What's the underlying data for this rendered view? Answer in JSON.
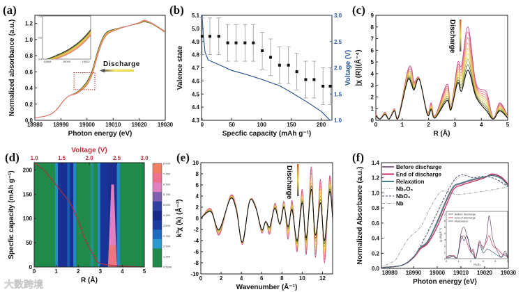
{
  "figure": {
    "watermark": "大数跨境"
  },
  "chart_data": [
    {
      "id": "a",
      "label": "(a)",
      "type": "line",
      "xlabel": "Photon energy (eV)",
      "ylabel": "Normalized absorbance (a.u.)",
      "xlim": [
        18980,
        19030
      ],
      "ylim": [
        0,
        1.3
      ],
      "xticks": [
        "18980",
        "18990",
        "19000",
        "19010",
        "19020",
        "19030"
      ],
      "yticks": [
        "0.0",
        "0.2",
        "0.4",
        "0.6",
        "0.8",
        "1.0",
        "1.2"
      ],
      "annotation": "Discharge",
      "n_curves": 8,
      "x": [
        18980,
        18985,
        18988,
        18991,
        18993,
        18995,
        18997,
        19000,
        19002,
        19004,
        19006,
        19008,
        19012,
        19016,
        19020,
        19022,
        19025,
        19030
      ],
      "start_curve": [
        0.03,
        0.06,
        0.12,
        0.24,
        0.3,
        0.33,
        0.37,
        0.48,
        0.62,
        0.85,
        1.02,
        1.1,
        1.14,
        1.17,
        1.2,
        1.22,
        1.19,
        1.09
      ],
      "end_curve": [
        0.03,
        0.06,
        0.12,
        0.24,
        0.3,
        0.32,
        0.35,
        0.44,
        0.57,
        0.8,
        0.98,
        1.07,
        1.13,
        1.17,
        1.21,
        1.24,
        1.2,
        1.1
      ],
      "colors": [
        "#111111",
        "#8a8a2a",
        "#e8d84a",
        "#f0a040",
        "#e07070"
      ],
      "highlight_box": {
        "x": [
          18995,
          19003
        ],
        "y": [
          0.38,
          0.59
        ],
        "color": "#a02020"
      },
      "inset": {
        "xlim": [
          18997.5,
          19002.5
        ],
        "ylim": [
          0.4,
          0.8
        ],
        "xticks": [
          "18998",
          "19000",
          "19002"
        ],
        "yticks": [
          "0.4",
          "0.6",
          "0.8"
        ]
      }
    },
    {
      "id": "b",
      "label": "(b)",
      "type": "scatter",
      "xlabel": "Specfic capacity (mAh g⁻¹)",
      "ylabel": "Valence state",
      "ylabel_right": "Voltage (V)",
      "xlim": [
        -1,
        218
      ],
      "ylim": [
        4.3,
        5.1
      ],
      "ylim_right": [
        1.0,
        3.0
      ],
      "xticks": [
        "0",
        "50",
        "100",
        "150",
        "200"
      ],
      "yticks": [
        "4.3",
        "4.4",
        "4.5",
        "4.6",
        "4.7",
        "4.8",
        "4.9",
        "5.0",
        "5.1"
      ],
      "yticks_right": [
        "1.0",
        "1.5",
        "2.0",
        "2.5",
        "3.0"
      ],
      "right_axis_color": "#2a5a9a",
      "valence": {
        "capacity": [
          0,
          13,
          28,
          43,
          57,
          72,
          86,
          101,
          115,
          130,
          145,
          159,
          174,
          188,
          203,
          215
        ],
        "value": [
          4.94,
          4.94,
          4.94,
          4.89,
          4.89,
          4.89,
          4.89,
          4.83,
          4.78,
          4.72,
          4.72,
          4.67,
          4.61,
          4.61,
          4.56,
          4.56
        ],
        "error": [
          0.14,
          0.14,
          0.14,
          0.14,
          0.14,
          0.14,
          0.14,
          0.14,
          0.14,
          0.14,
          0.14,
          0.14,
          0.14,
          0.14,
          0.14,
          0.14
        ]
      },
      "voltage_curve": {
        "capacity": [
          0,
          2,
          5,
          10,
          20,
          50,
          75,
          100,
          130,
          150,
          180,
          200,
          215
        ],
        "voltage": [
          3.0,
          2.6,
          2.3,
          2.15,
          2.1,
          1.95,
          1.87,
          1.78,
          1.66,
          1.53,
          1.32,
          1.17,
          1.0
        ],
        "color": "#1f4f8f"
      }
    },
    {
      "id": "c",
      "label": "(c)",
      "type": "line",
      "xlabel": "R (Å)",
      "ylabel": "|χ (R)|(Å⁻⁴)",
      "xlim": [
        0,
        5
      ],
      "ylim": [
        0,
        9
      ],
      "xticks": [
        "0",
        "1",
        "2",
        "3",
        "4",
        "5"
      ],
      "yticks": [
        "0",
        "1",
        "2",
        "3",
        "4",
        "5",
        "6",
        "7",
        "8",
        "9"
      ],
      "annotation": "Discharge",
      "n_curves": 9,
      "x": [
        0,
        0.15,
        0.35,
        0.5,
        0.7,
        0.85,
        1.2,
        1.35,
        1.45,
        1.65,
        1.95,
        2.1,
        2.25,
        2.7,
        2.85,
        3.1,
        3.25,
        3.5,
        3.8,
        4.2,
        4.45,
        4.7,
        5
      ],
      "start_curve": [
        0.6,
        0.1,
        0.7,
        0.1,
        1.0,
        0.3,
        4.2,
        4.5,
        3.3,
        3.6,
        0.7,
        1.5,
        0.4,
        3.1,
        1.2,
        4.9,
        4.7,
        8.0,
        3.2,
        2.4,
        0.2,
        1.5,
        0.4
      ],
      "end_curve": [
        0.4,
        0.1,
        0.5,
        0.1,
        0.8,
        0.2,
        3.4,
        3.1,
        2.6,
        3.5,
        0.5,
        0.9,
        0.2,
        1.7,
        0.9,
        3.2,
        2.5,
        4.3,
        2.0,
        0.8,
        0.1,
        0.8,
        0.2
      ],
      "colors": [
        "#c04080",
        "#e07090",
        "#f0a050",
        "#e8d84a",
        "#8a8a2a",
        "#111111"
      ]
    },
    {
      "id": "d",
      "label": "(d)",
      "type": "heatmap",
      "xlabel": "R (Å)",
      "ylabel": "Specfic capacity (mAh g⁻¹)",
      "x2label": "Voltage (V)",
      "xlim": [
        0,
        5
      ],
      "ylim": [
        0,
        215
      ],
      "x2lim": [
        1.0,
        3.0
      ],
      "xticks": [
        "0",
        "1",
        "2",
        "3",
        "4",
        "5"
      ],
      "yticks": [
        "0",
        "50",
        "100",
        "150",
        "200"
      ],
      "x2ticks": [
        "1.0",
        "1.5",
        "2.0",
        "2.5",
        "3.0"
      ],
      "x2_color": "#c03040",
      "colorbar": {
        "ticks": [
          "0.5000",
          "1.250",
          "2.000",
          "2.750",
          "3.500",
          "4.250",
          "5.000",
          "5.750",
          "6.500",
          "7.250",
          "8.000"
        ],
        "range": [
          0.5,
          8.0
        ],
        "colors": [
          "#1f8a4a",
          "#1f8a4a",
          "#2a9ad0",
          "#1a6ac0",
          "#1a3aa0",
          "#16288a",
          "#3040a0",
          "#8060b0",
          "#e080c0",
          "#f07090",
          "#f08060"
        ]
      },
      "bands": [
        {
          "r": [
            0.95,
            1.08
          ],
          "value": 2.2
        },
        {
          "r": [
            1.08,
            1.5
          ],
          "value": 3.9
        },
        {
          "r": [
            1.5,
            1.62
          ],
          "value": 3.0
        },
        {
          "r": [
            1.62,
            1.78
          ],
          "value": 3.9
        },
        {
          "r": [
            1.78,
            1.9
          ],
          "value": 2.3
        },
        {
          "r": [
            2.55,
            2.7
          ],
          "value": 1.6
        },
        {
          "r": [
            2.88,
            3.0
          ],
          "value": 2.2
        },
        {
          "r": [
            3.0,
            3.35
          ],
          "value": 3.8
        },
        {
          "r": [
            3.35,
            3.75
          ],
          "value": 4.4
        },
        {
          "r": [
            3.75,
            3.9
          ],
          "value": 2.3
        }
      ],
      "peak": {
        "r_center": 3.55,
        "value_max": 8.0,
        "value_mid": 6.5
      },
      "voltage_overlay_color": "#b03040"
    },
    {
      "id": "e",
      "label": "(e)",
      "type": "line",
      "xlabel": "Wavenumber (Å⁻¹)",
      "ylabel": "k³χ (k) (Å⁻³)",
      "xlim": [
        0,
        13
      ],
      "ylim": [
        -10,
        10
      ],
      "xticks": [
        "0",
        "2",
        "4",
        "6",
        "8",
        "10",
        "12"
      ],
      "yticks": [
        "-10",
        "-8",
        "-6",
        "-4",
        "-2",
        "0",
        "2",
        "4",
        "6",
        "8",
        "10"
      ],
      "annotation": "Discharge",
      "n_curves": 8,
      "x": [
        0,
        1,
        1.8,
        2.9,
        3.5,
        4.1,
        4.8,
        5.4,
        6,
        6.4,
        6.8,
        7.3,
        7.8,
        8.2,
        8.6,
        9,
        9.5,
        10,
        10.4,
        10.9,
        11.3,
        11.8,
        12.2,
        12.7,
        13
      ],
      "start_curve": [
        0,
        1.7,
        -3,
        4,
        2,
        -4.7,
        3.1,
        2.3,
        -2.6,
        -0.5,
        -2.8,
        2.7,
        -1.2,
        3,
        -3.8,
        3.2,
        -6,
        5.2,
        -6.5,
        9.3,
        -7,
        7,
        -8,
        7.5,
        0
      ],
      "end_curve": [
        0,
        1.2,
        -2,
        3.5,
        1.5,
        -4.3,
        3,
        2,
        -2,
        -0.6,
        -1.5,
        1.8,
        -1,
        2,
        -1.5,
        1.5,
        -4,
        2.8,
        -3.5,
        5.2,
        -3,
        2.8,
        -4,
        4.8,
        0
      ],
      "colors": [
        "#c04080",
        "#e07090",
        "#f0a050",
        "#e8d84a",
        "#8a8a2a",
        "#111111"
      ]
    },
    {
      "id": "f",
      "label": "(f)",
      "type": "line",
      "xlabel": "Photon energy (eV)",
      "ylabel": "Normalized Absorbance (a.u.)",
      "xlim": [
        18976.5,
        19030
      ],
      "ylim": [
        0,
        1.4
      ],
      "xticks": [
        "18980",
        "18990",
        "19000",
        "19010",
        "19020",
        "19030"
      ],
      "yticks": [
        "0.0",
        "0.2",
        "0.4",
        "0.6",
        "0.8",
        "1.0",
        "1.2",
        "1.4"
      ],
      "legend_position": "top-left",
      "series": [
        {
          "name": "Before discharge",
          "color": "#8a6a8a",
          "dash": "solid",
          "x": [
            18976,
            18985,
            18990,
            18993,
            18996,
            19000,
            19004,
            19007,
            19010,
            19015,
            19020,
            19023,
            19027,
            19030
          ],
          "y": [
            0.01,
            0.04,
            0.15,
            0.27,
            0.35,
            0.6,
            0.9,
            1.08,
            1.12,
            1.17,
            1.21,
            1.24,
            1.2,
            1.1
          ]
        },
        {
          "name": "End of discharge",
          "color": "#c0305a",
          "dash": "solid",
          "x": [
            18976,
            18985,
            18990,
            18993,
            18996,
            19000,
            19004,
            19007,
            19010,
            19015,
            19020,
            19023,
            19027,
            19030
          ],
          "y": [
            0.01,
            0.04,
            0.14,
            0.26,
            0.33,
            0.55,
            0.85,
            1.05,
            1.1,
            1.15,
            1.2,
            1.25,
            1.21,
            1.11
          ]
        },
        {
          "name": "Relaxation",
          "color": "#4a7a80",
          "dash": "solid",
          "x": [
            18976,
            18985,
            18990,
            18993,
            18996,
            19000,
            19004,
            19007,
            19010,
            19015,
            19020,
            19023,
            19027,
            19030
          ],
          "y": [
            0.01,
            0.04,
            0.15,
            0.28,
            0.36,
            0.62,
            0.92,
            1.09,
            1.13,
            1.18,
            1.21,
            1.23,
            1.19,
            1.09
          ]
        },
        {
          "name": "Nb₂O₅",
          "color": "#aaaaaa",
          "dash": "dot",
          "x": [
            18976,
            18985,
            18990,
            18995,
            19000,
            19005,
            19008,
            19012,
            19015,
            19020,
            19025,
            19030
          ],
          "y": [
            0.01,
            0.04,
            0.14,
            0.4,
            0.72,
            1.05,
            1.18,
            1.23,
            1.21,
            1.22,
            1.17,
            1.07
          ]
        },
        {
          "name": "NbO₂",
          "color": "#444466",
          "dash": "dash",
          "x": [
            18976,
            18985,
            18990,
            18995,
            19000,
            19005,
            19008,
            19011,
            19015,
            19020,
            19025,
            19030
          ],
          "y": [
            0.01,
            0.04,
            0.15,
            0.42,
            0.74,
            1.06,
            1.2,
            1.24,
            1.2,
            1.22,
            1.18,
            1.08
          ]
        },
        {
          "name": "Nb",
          "color": "#999999",
          "dash": "dashdot",
          "x": [
            18976,
            18982,
            18985,
            18988,
            18993,
            18997,
            19001,
            19004,
            19008,
            19015,
            19025,
            19030
          ],
          "y": [
            0.02,
            0.1,
            0.25,
            0.4,
            0.55,
            0.8,
            1.0,
            1.02,
            0.98,
            1.0,
            1.05,
            1.08
          ]
        }
      ],
      "inset": {
        "xlabel": "R (Å)",
        "ylabel": "|χ (R)|(Å⁻³)",
        "xlim": [
          0,
          5
        ],
        "ylim": [
          0,
          7.5
        ],
        "xticks": [
          "0",
          "1",
          "2",
          "3",
          "4",
          "5"
        ],
        "yticks": [
          "0",
          "1",
          "2",
          "3",
          "4",
          "5",
          "6",
          "7"
        ],
        "x": [
          0,
          0.3,
          0.6,
          0.9,
          1.2,
          1.45,
          1.7,
          2.0,
          2.2,
          2.4,
          2.7,
          3.0,
          3.3,
          3.5,
          3.8,
          4.2,
          4.5,
          4.8,
          5
        ],
        "series": [
          {
            "name": "Before discharge",
            "color": "#6a4a6a",
            "y": [
              0.3,
              0.5,
              0.4,
              0.2,
              4.0,
              5.0,
              3.5,
              1.5,
              1.0,
              0.1,
              2.8,
              1.5,
              3.8,
              6.8,
              3.0,
              1.0,
              0.3,
              1.2,
              0.2
            ]
          },
          {
            "name": "End of discharge",
            "color": "#c0305a",
            "y": [
              0.2,
              0.3,
              0.5,
              0.3,
              3.0,
              3.6,
              2.5,
              1.0,
              1.5,
              0.1,
              2.5,
              1.8,
              2.8,
              3.6,
              2.0,
              1.5,
              0.8,
              0.5,
              0.2
            ]
          },
          {
            "name": "Relaxation",
            "color": "#3a5a6a",
            "y": [
              0.1,
              0.2,
              0.4,
              0.2,
              3.5,
              2.8,
              3.6,
              1.2,
              0.6,
              0.1,
              2.2,
              0.9,
              1.5,
              1.4,
              1.0,
              0.5,
              0.2,
              0.8,
              0.1
            ]
          }
        ]
      }
    }
  ]
}
